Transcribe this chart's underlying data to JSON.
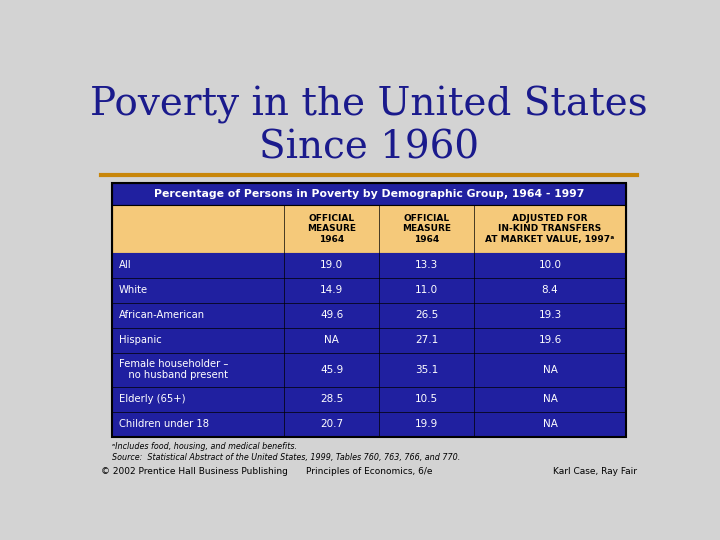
{
  "title": "Poverty in the United States\nSince 1960",
  "title_color": "#1a1a8c",
  "title_fontsize": 28,
  "bg_color": "#d3d3d3",
  "separator_color": "#c8860a",
  "table_header_bg": "#f5c97a",
  "table_header_title_bg": "#2020a0",
  "table_body_bg": "#2020a0",
  "table_header_title_text": "Percentage of Persons in Poverty by Demographic Group, 1964 - 1997",
  "table_header_title_color": "#ffffff",
  "col_headers": [
    "OFFICIAL\nMEASURE\n1964",
    "OFFICIAL\nMEASURE\n1964",
    "ADJUSTED FOR\nIN-KIND TRANSFERS\nAT MARKET VALUE, 1997ᵃ"
  ],
  "col_header_color": "#000000",
  "row_labels": [
    "All",
    "White",
    "African-American",
    "Hispanic",
    "Female householder –\n   no husband present",
    "Elderly (65+)",
    "Children under 18"
  ],
  "row_data": [
    [
      "19.0",
      "13.3",
      "10.0"
    ],
    [
      "14.9",
      "11.0",
      "8.4"
    ],
    [
      "49.6",
      "26.5",
      "19.3"
    ],
    [
      "NA",
      "27.1",
      "19.6"
    ],
    [
      "45.9",
      "35.1",
      "NA"
    ],
    [
      "28.5",
      "10.5",
      "NA"
    ],
    [
      "20.7",
      "19.9",
      "NA"
    ]
  ],
  "row_text_color": "#ffffff",
  "footnote1": "ᵃIncludes food, housing, and medical benefits.",
  "footnote2": "Source:  Statistical Abstract of the United States, 1999, Tables 760, 763, 766, and 770.",
  "footer_left": "© 2002 Prentice Hall Business Publishing",
  "footer_center": "Principles of Economics, 6/e",
  "footer_right": "Karl Case, Ray Fair"
}
